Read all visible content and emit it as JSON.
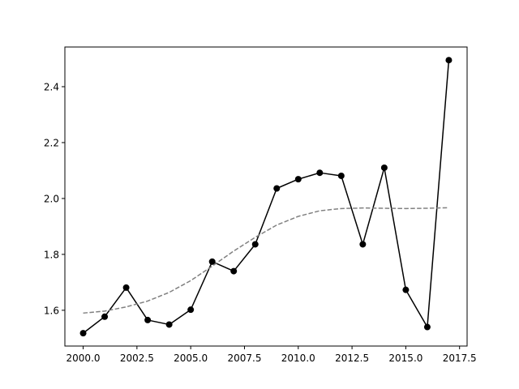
{
  "chart_data": {
    "type": "line",
    "title": "",
    "xlabel": "",
    "ylabel": "",
    "xlim": [
      1999.15,
      2017.85
    ],
    "ylim": [
      1.472,
      2.542
    ],
    "xticks": [
      2000.0,
      2002.5,
      2005.0,
      2007.5,
      2010.0,
      2012.5,
      2015.0,
      2017.5
    ],
    "xtick_labels": [
      "2000.0",
      "2002.5",
      "2005.0",
      "2007.5",
      "2010.0",
      "2012.5",
      "2015.0",
      "2017.5"
    ],
    "yticks": [
      1.6,
      1.8,
      2.0,
      2.2,
      2.4
    ],
    "ytick_labels": [
      "1.6",
      "1.8",
      "2.0",
      "2.2",
      "2.4"
    ],
    "grid": false,
    "series": [
      {
        "style": "solid-marker",
        "color": "#000000",
        "x": [
          2000,
          2001,
          2002,
          2003,
          2004,
          2005,
          2006,
          2007,
          2008,
          2009,
          2010,
          2011,
          2012,
          2013,
          2014,
          2015,
          2016,
          2017
        ],
        "y": [
          1.518,
          1.577,
          1.681,
          1.565,
          1.549,
          1.602,
          1.774,
          1.74,
          1.836,
          2.036,
          2.069,
          2.092,
          2.081,
          1.836,
          2.11,
          1.673,
          1.54,
          2.495
        ]
      },
      {
        "style": "dashed",
        "color": "#808080",
        "x": [
          2000,
          2001,
          2002,
          2003,
          2004,
          2005,
          2006,
          2007,
          2008,
          2009,
          2010,
          2011,
          2012,
          2013,
          2014,
          2015,
          2016,
          2017
        ],
        "y": [
          1.59,
          1.597,
          1.612,
          1.633,
          1.664,
          1.706,
          1.758,
          1.812,
          1.861,
          1.905,
          1.936,
          1.956,
          1.964,
          1.966,
          1.965,
          1.964,
          1.965,
          1.967
        ]
      }
    ]
  }
}
